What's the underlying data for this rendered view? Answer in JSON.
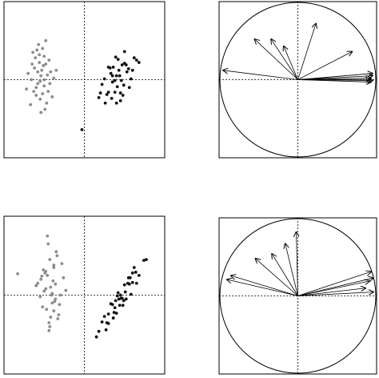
{
  "chart_data": [
    {
      "type": "scatter",
      "xlim": [
        -1,
        1
      ],
      "ylim": [
        -1,
        1
      ],
      "xticks": [
        0
      ],
      "yticks": [
        0
      ],
      "tick_labels": false,
      "series": [
        {
          "color": "#8c8c8c",
          "x": [
            -0.54,
            -0.6,
            -0.48,
            -0.66,
            -0.42,
            -0.55,
            -0.5,
            -0.62,
            -0.58,
            -0.45,
            -0.7,
            -0.52,
            -0.47,
            -0.6,
            -0.56,
            -0.38,
            -0.64,
            -0.5,
            -0.53,
            -0.44,
            -0.72,
            -0.57,
            -0.49,
            -0.61,
            -0.4,
            -0.55,
            -0.51,
            -0.67,
            -0.46,
            -0.59,
            -0.35,
            -0.63,
            -0.54,
            -0.48,
            -0.58,
            -0.43,
            -0.65,
            -0.52,
            -0.56,
            -0.5
          ],
          "values": [
            0.05,
            -0.1,
            0.2,
            0.0,
            0.1,
            -0.25,
            0.3,
            0.15,
            -0.05,
            -0.15,
            0.08,
            0.4,
            -0.3,
            -0.2,
            0.22,
            0.02,
            0.35,
            -0.08,
            0.12,
            0.25,
            -0.12,
            0.45,
            -0.38,
            0.28,
            -0.22,
            -0.02,
            0.18,
            -0.32,
            0.06,
            0.38,
            0.12,
            -0.15,
            -0.42,
            0.5,
            0.1,
            -0.05,
            0.2,
            -0.18,
            0.32,
            0.0
          ]
        },
        {
          "color": "#111111",
          "x": [
            0.4,
            0.3,
            0.5,
            0.35,
            0.45,
            0.25,
            0.55,
            0.42,
            0.38,
            0.6,
            0.2,
            0.48,
            0.32,
            0.52,
            0.44,
            0.28,
            0.58,
            0.36,
            0.46,
            0.4,
            0.65,
            0.22,
            0.5,
            0.34,
            0.43,
            0.3,
            0.56,
            0.38,
            0.47,
            0.26,
            0.62,
            0.41,
            0.35,
            0.53,
            0.45,
            0.18,
            0.68,
            0.39,
            0.49,
            0.33,
            -0.03
          ],
          "values": [
            0.05,
            -0.16,
            0.21,
            -0.03,
            -0.17,
            0.01,
            0.14,
            0.26,
            -0.16,
            0.12,
            -0.17,
            -0.2,
            0.15,
            0.19,
            0.05,
            -0.19,
            0.01,
            0.16,
            -0.01,
            -0.3,
            0.25,
            -0.06,
            0.36,
            -0.24,
            0.12,
            0.16,
            -0.1,
            -0.01,
            0.19,
            -0.3,
            0.28,
            -0.09,
            0.05,
            0.1,
            -0.27,
            -0.23,
            0.22,
            0.29,
            -0.07,
            0.08,
            -0.64
          ]
        }
      ]
    },
    {
      "type": "vectors",
      "xlim": [
        -1,
        1
      ],
      "ylim": [
        -1,
        1
      ],
      "xticks": [
        0
      ],
      "yticks": [
        0
      ],
      "tick_labels": false,
      "circle": true,
      "color": "#000000",
      "x": [
        -0.95,
        -0.55,
        -0.34,
        -0.18,
        0.23,
        0.69,
        0.95,
        0.95,
        0.93,
        0.95,
        0.93,
        0.92
      ],
      "values": [
        0.12,
        0.52,
        0.52,
        0.43,
        0.72,
        0.36,
        0.08,
        0.05,
        0.02,
        -0.01,
        -0.03,
        0.0
      ]
    },
    {
      "type": "scatter",
      "xlim": [
        -1,
        1
      ],
      "ylim": [
        -1,
        1
      ],
      "xticks": [
        0
      ],
      "yticks": [
        0
      ],
      "tick_labels": false,
      "series": [
        {
          "color": "#8c8c8c",
          "x": [
            -0.42,
            -0.48,
            -0.36,
            -0.54,
            -0.3,
            -0.43,
            -0.38,
            -0.5,
            -0.46,
            -0.33,
            -0.58,
            -0.4,
            -0.35,
            -0.48,
            -0.44,
            -0.26,
            -0.52,
            -0.38,
            -0.41,
            -0.32,
            -0.6,
            -0.45,
            -0.37,
            -0.49,
            -0.28,
            -0.43,
            -0.39,
            -0.55,
            -0.34,
            -0.47,
            -0.23,
            -0.51,
            -0.42,
            -0.36,
            -0.46,
            -0.31,
            -0.53,
            -0.4,
            -0.44,
            -0.38,
            -0.83
          ],
          "values": [
            0.1,
            0.3,
            -0.05,
            0.2,
            0.0,
            0.45,
            -0.2,
            0.05,
            0.25,
            -0.3,
            0.15,
            -0.1,
            0.55,
            0.08,
            -0.35,
            0.22,
            -0.15,
            0.35,
            0.0,
            -0.25,
            0.12,
            0.65,
            -0.08,
            0.28,
            0.4,
            -0.4,
            0.18,
            -0.02,
            0.5,
            -0.18,
            0.06,
            0.32,
            -0.28,
            0.14,
            0.75,
            -0.12,
            0.24,
            0.02,
            -0.45,
            0.38,
            0.27
          ]
        },
        {
          "color": "#111111",
          "x": [
            0.45,
            0.3,
            0.6,
            0.38,
            0.52,
            0.22,
            0.68,
            0.42,
            0.48,
            0.35,
            0.56,
            0.28,
            0.62,
            0.4,
            0.5,
            0.18,
            0.74,
            0.44,
            0.33,
            0.58,
            0.46,
            0.25,
            0.65,
            0.37,
            0.54,
            0.41,
            0.3,
            0.6,
            0.49,
            0.15,
            0.77,
            0.43,
            0.36,
            0.55,
            0.47,
            0.27,
            0.64,
            0.39,
            0.51,
            0.57
          ],
          "values": [
            0.0,
            -0.36,
            0.28,
            -0.16,
            -0.05,
            -0.34,
            0.25,
            0.03,
            -0.13,
            -0.12,
            0.14,
            -0.35,
            0.35,
            -0.23,
            0.13,
            -0.46,
            0.44,
            -0.13,
            -0.11,
            0.01,
            -0.04,
            -0.27,
            0.15,
            -0.22,
            0.15,
            -0.01,
            -0.24,
            0.16,
            -0.07,
            -0.53,
            0.45,
            -0.05,
            -0.29,
            0.22,
            -0.04,
            -0.44,
            0.29,
            -0.07,
            0.04,
            0.22
          ]
        }
      ]
    },
    {
      "type": "vectors",
      "xlim": [
        -1,
        1
      ],
      "ylim": [
        -1,
        1
      ],
      "xticks": [
        0
      ],
      "yticks": [
        0
      ],
      "tick_labels": false,
      "circle": true,
      "color": "#000000",
      "x": [
        -0.9,
        -0.85,
        -0.54,
        -0.33,
        -0.16,
        -0.02,
        0.93,
        0.96,
        0.91,
        0.86,
        0.96
      ],
      "values": [
        0.21,
        0.26,
        0.48,
        0.54,
        0.67,
        0.82,
        0.31,
        0.23,
        0.19,
        0.1,
        0.05
      ]
    }
  ]
}
